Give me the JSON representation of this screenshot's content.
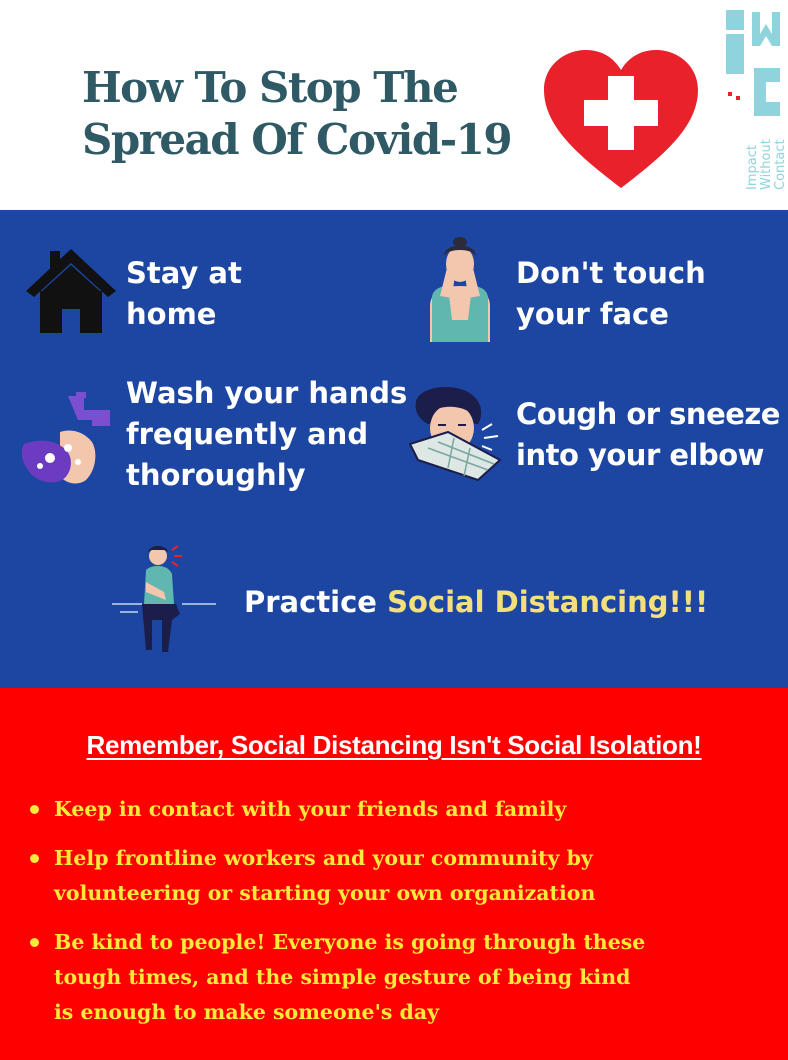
{
  "header": {
    "title_line1": "How To Stop The",
    "title_line2": "Spread Of Covid-19",
    "logo_text_line1": "Impact",
    "logo_text_line2": "Without",
    "logo_text_line3": "Contact",
    "icon_heart": "heart-with-cross-icon",
    "icon_logo": "iwc-logo"
  },
  "tips": {
    "home_line1": "Stay at",
    "home_line2": "home",
    "face_line1": "Don't touch",
    "face_line2": "your face",
    "wash_line1": "Wash your hands",
    "wash_line2": "frequently and",
    "wash_line3": "thoroughly",
    "cough_line1": "Cough or sneeze",
    "cough_line2": "into your elbow",
    "social_prefix": "Practice ",
    "social_highlight": "Social Distancing!!!",
    "icons": [
      "house-icon",
      "face-touch-icon",
      "hand-wash-icon",
      "sneeze-icon",
      "social-distancing-icon"
    ]
  },
  "remember": {
    "heading": "Remember, Social Distancing Isn't Social Isolation!",
    "items": [
      {
        "line1": "Keep in contact with your friends and family"
      },
      {
        "line1": "Help frontline workers and your community by",
        "line2": "volunteering or starting your own organization"
      },
      {
        "line1": "Be kind to people! Everyone is going through these",
        "line2": "tough times, and the simple gesture of being kind",
        "line3": "is enough to make someone's day"
      }
    ]
  },
  "colors": {
    "header_bg": "#ffffff",
    "title": "#2f5964",
    "blue_bg": "#1c46a2",
    "red_bg": "#ff0000",
    "highlight": "#f4e07a",
    "bullet_text": "#ffe93a",
    "logo": "#8fd3dc"
  }
}
